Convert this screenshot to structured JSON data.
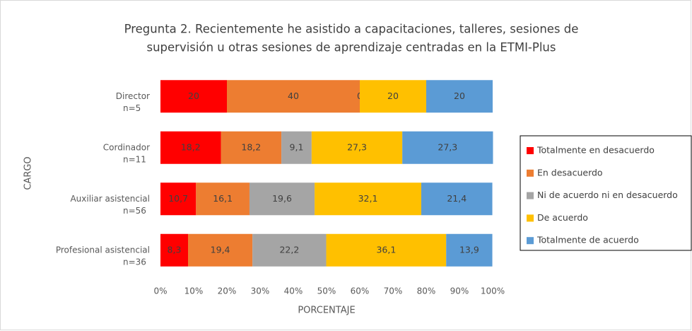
{
  "chart_data": {
    "type": "stacked_bar_horizontal",
    "title": [
      "Pregunta 2. Recientemente he asistido a capacitaciones, talleres, sesiones de",
      "supervisión u otras sesiones de aprendizaje centradas en la ETMI-Plus"
    ],
    "x_label": "PORCENTAJE",
    "y_label": "CARGO",
    "categories": [
      "Director",
      "Cordinador",
      "Auxiliar asistencial",
      "Profesional asistencial"
    ],
    "category_counts": [
      "n=5",
      "n=11",
      "n=56",
      "n=36"
    ],
    "series": [
      {
        "name": "Totalmente en desacuerdo",
        "color": "#ff0000",
        "values": [
          20,
          18.2,
          10.7,
          8.3
        ],
        "value_labels": [
          "20",
          "18,2",
          "10,7",
          "8,3"
        ]
      },
      {
        "name": "En desacuerdo",
        "color": "#ed7d31",
        "values": [
          40,
          18.2,
          16.1,
          19.4
        ],
        "value_labels": [
          "40",
          "18,2",
          "16,1",
          "19,4"
        ]
      },
      {
        "name": "Ni de acuerdo ni en desacuerdo",
        "color": "#a5a5a5",
        "values": [
          0,
          9.1,
          19.6,
          22.2
        ],
        "value_labels": [
          "0",
          "9,1",
          "19,6",
          "22,2"
        ]
      },
      {
        "name": "De acuerdo",
        "color": "#ffc000",
        "values": [
          20,
          27.3,
          32.1,
          36.1
        ],
        "value_labels": [
          "20",
          "27,3",
          "32,1",
          "36,1"
        ]
      },
      {
        "name": "Totalmente de acuerdo",
        "color": "#5b9bd5",
        "values": [
          20,
          27.3,
          21.4,
          13.9
        ],
        "value_labels": [
          "20",
          "27,3",
          "21,4",
          "13,9"
        ]
      }
    ],
    "xlim": [
      0,
      100
    ],
    "xticks": [
      {
        "value": 0,
        "label": "0%"
      },
      {
        "value": 10,
        "label": "10%"
      },
      {
        "value": 20,
        "label": "20%"
      },
      {
        "value": 30,
        "label": "30%"
      },
      {
        "value": 40,
        "label": "40%"
      },
      {
        "value": 50,
        "label": "50%"
      },
      {
        "value": 60,
        "label": "60%"
      },
      {
        "value": 70,
        "label": "70%"
      },
      {
        "value": 80,
        "label": "80%"
      },
      {
        "value": 90,
        "label": "90%"
      },
      {
        "value": 100,
        "label": "100%"
      }
    ],
    "legend": "right"
  }
}
